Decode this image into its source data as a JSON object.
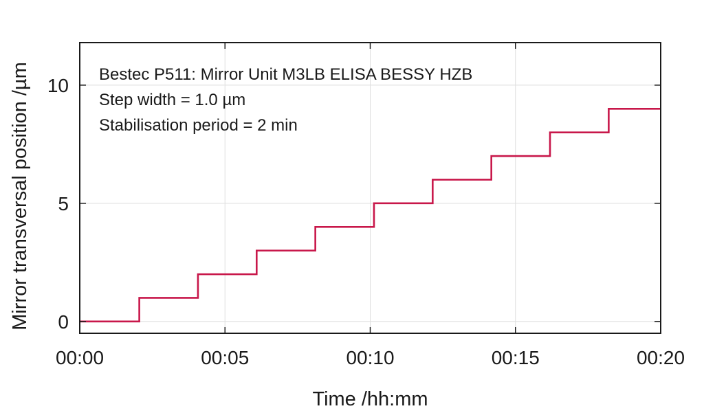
{
  "chart_data": {
    "type": "line",
    "step": true,
    "annotations": [
      "Bestec P511: Mirror Unit M3LB ELISA BESSY HZB",
      "Step width = 1.0 µm",
      "Stabilisation period = 2 min"
    ],
    "xlabel": "Time /hh:mm",
    "ylabel": "Mirror transversal position /µm",
    "xlim": [
      0,
      20
    ],
    "ylim": [
      -0.5,
      11.8
    ],
    "xticks": [
      0,
      5,
      10,
      15,
      20
    ],
    "xtick_labels": [
      "00:00",
      "00:05",
      "00:10",
      "00:15",
      "00:20"
    ],
    "yticks": [
      0,
      5,
      10
    ],
    "ytick_labels": [
      "0",
      "5",
      "10"
    ],
    "grid": true,
    "series": [
      {
        "color": "#c8174a",
        "x": [
          0,
          2.05,
          4.07,
          6.09,
          8.11,
          10.13,
          12.15,
          14.17,
          16.19,
          18.21,
          20
        ],
        "y": [
          0,
          1,
          2,
          3,
          4,
          5,
          6,
          7,
          8,
          9,
          9
        ]
      }
    ]
  }
}
